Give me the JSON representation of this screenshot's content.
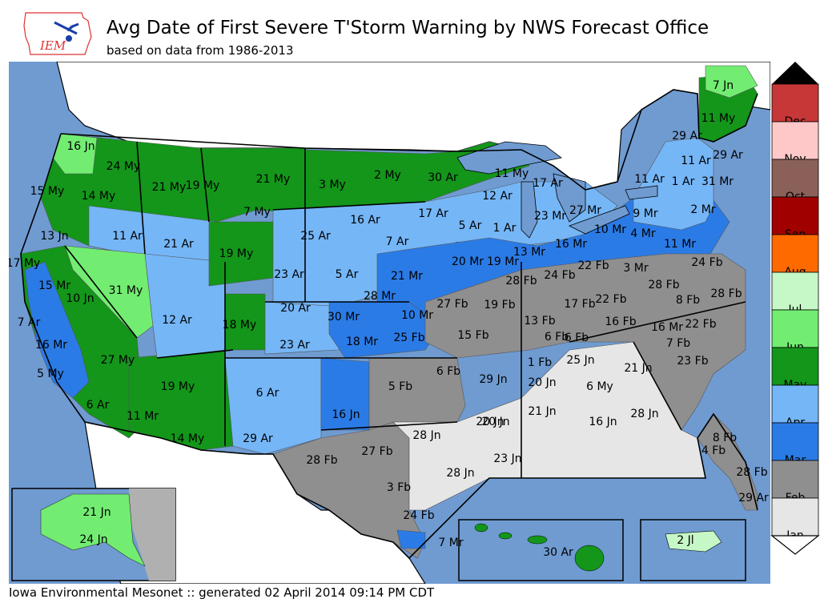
{
  "header": {
    "title": "Avg Date of First Severe T'Storm Warning by NWS Forecast Office",
    "subtitle": "based on data from 1986-2013",
    "logo_text": "IEM"
  },
  "footer": {
    "credit": "Iowa Environmental Mesonet :: generated 02 April 2014 09:14 PM CDT"
  },
  "colors": {
    "water": "#6f9bd1",
    "land_outside": "#ffffff",
    "alaska_canada": "#b0b0b0"
  },
  "legend": {
    "items": [
      {
        "label": "Dec",
        "color": "#c83737"
      },
      {
        "label": "Nov",
        "color": "#ffc8c8"
      },
      {
        "label": "Oct",
        "color": "#8a6058"
      },
      {
        "label": "Sep",
        "color": "#a00000"
      },
      {
        "label": "Aug",
        "color": "#ff6a00"
      },
      {
        "label": "Jul",
        "color": "#c6f7c6"
      },
      {
        "label": "Jun",
        "color": "#72ed72"
      },
      {
        "label": "May",
        "color": "#13961a"
      },
      {
        "label": "Apr",
        "color": "#75b6f7"
      },
      {
        "label": "Mar",
        "color": "#2b7be6"
      },
      {
        "label": "Feb",
        "color": "#8f8f8f"
      },
      {
        "label": "Jan",
        "color": "#e6e6e6"
      }
    ]
  },
  "map_labels": [
    {
      "text": "16 Jn"
    },
    {
      "text": "24 My"
    },
    {
      "text": "21 My"
    },
    {
      "text": "19 My"
    },
    {
      "text": "21 My"
    },
    {
      "text": "3 My"
    },
    {
      "text": "2 My"
    },
    {
      "text": "30 Ar"
    },
    {
      "text": "11 My"
    },
    {
      "text": "7 Jn"
    },
    {
      "text": "11 My"
    },
    {
      "text": "29 Ar"
    },
    {
      "text": "29 Ar"
    },
    {
      "text": "11 Ar"
    },
    {
      "text": "11 Ar"
    },
    {
      "text": "1 Ar"
    },
    {
      "text": "31 Mr"
    },
    {
      "text": "15 My"
    },
    {
      "text": "14 My"
    },
    {
      "text": "7 My"
    },
    {
      "text": "16 Ar"
    },
    {
      "text": "17 Ar"
    },
    {
      "text": "12 Ar"
    },
    {
      "text": "17 Ar"
    },
    {
      "text": "23 Mr"
    },
    {
      "text": "27 Mr"
    },
    {
      "text": "9 Mr"
    },
    {
      "text": "2 Mr"
    },
    {
      "text": "13 Jn"
    },
    {
      "text": "11 Ar"
    },
    {
      "text": "21 Ar"
    },
    {
      "text": "25 Ar"
    },
    {
      "text": "5 Ar"
    },
    {
      "text": "1 Ar"
    },
    {
      "text": "7 Ar"
    },
    {
      "text": "16 Mr"
    },
    {
      "text": "10 Mr"
    },
    {
      "text": "4 Mr"
    },
    {
      "text": "11 Mr"
    },
    {
      "text": "17 My"
    },
    {
      "text": "19 My"
    },
    {
      "text": "20 Mr"
    },
    {
      "text": "19 Mr"
    },
    {
      "text": "13 Mr"
    },
    {
      "text": "22 Fb"
    },
    {
      "text": "3 Mr"
    },
    {
      "text": "24 Fb"
    },
    {
      "text": "15 Mr"
    },
    {
      "text": "31 My"
    },
    {
      "text": "10 Jn"
    },
    {
      "text": "23 Ar"
    },
    {
      "text": "5 Ar"
    },
    {
      "text": "21 Mr"
    },
    {
      "text": "28 Fb"
    },
    {
      "text": "24 Fb"
    },
    {
      "text": "28 Fb"
    },
    {
      "text": "28 Mr"
    },
    {
      "text": "27 Fb"
    },
    {
      "text": "19 Fb"
    },
    {
      "text": "17 Fb"
    },
    {
      "text": "22 Fb"
    },
    {
      "text": "8 Fb"
    },
    {
      "text": "28 Fb"
    },
    {
      "text": "7 Ar"
    },
    {
      "text": "12 Ar"
    },
    {
      "text": "18 My"
    },
    {
      "text": "20 Ar"
    },
    {
      "text": "30 Mr"
    },
    {
      "text": "10 Mr"
    },
    {
      "text": "13 Fb"
    },
    {
      "text": "16 Fb"
    },
    {
      "text": "6 Fb"
    },
    {
      "text": "22 Fb"
    },
    {
      "text": "16 Mr"
    },
    {
      "text": "23 Ar"
    },
    {
      "text": "18 Mr"
    },
    {
      "text": "25 Fb"
    },
    {
      "text": "15 Fb"
    },
    {
      "text": "6 Fb"
    },
    {
      "text": "7 Fb"
    },
    {
      "text": "27 My"
    },
    {
      "text": "25 Jn"
    },
    {
      "text": "1 Fb"
    },
    {
      "text": "23 Fb"
    },
    {
      "text": "5 My"
    },
    {
      "text": "16 Mr"
    },
    {
      "text": "6 Fb"
    },
    {
      "text": "29 Jn"
    },
    {
      "text": "21 Jn"
    },
    {
      "text": "19 My"
    },
    {
      "text": "6 Ar"
    },
    {
      "text": "5 Fb"
    },
    {
      "text": "20 Jn"
    },
    {
      "text": "6 My"
    },
    {
      "text": "6 Ar"
    },
    {
      "text": "11 Mr"
    },
    {
      "text": "16 Jn"
    },
    {
      "text": "21 Jn"
    },
    {
      "text": "28 Jn"
    },
    {
      "text": "20 Jn"
    },
    {
      "text": "16 Jn"
    },
    {
      "text": "14 My"
    },
    {
      "text": "29 Ar"
    },
    {
      "text": "28 Jn"
    },
    {
      "text": "8 Fb"
    },
    {
      "text": "27 Fb"
    },
    {
      "text": "20 Jn"
    },
    {
      "text": "4 Fb"
    },
    {
      "text": "28 Fb"
    },
    {
      "text": "23 Jn"
    },
    {
      "text": "28 Jn"
    },
    {
      "text": "28 Fb"
    },
    {
      "text": "3 Fb"
    },
    {
      "text": "29 Ar"
    },
    {
      "text": "24 Fb"
    },
    {
      "text": "7 Mr"
    },
    {
      "text": "21 Jn"
    },
    {
      "text": "24 Jn"
    },
    {
      "text": "30 Ar"
    },
    {
      "text": "2 Jl"
    }
  ]
}
